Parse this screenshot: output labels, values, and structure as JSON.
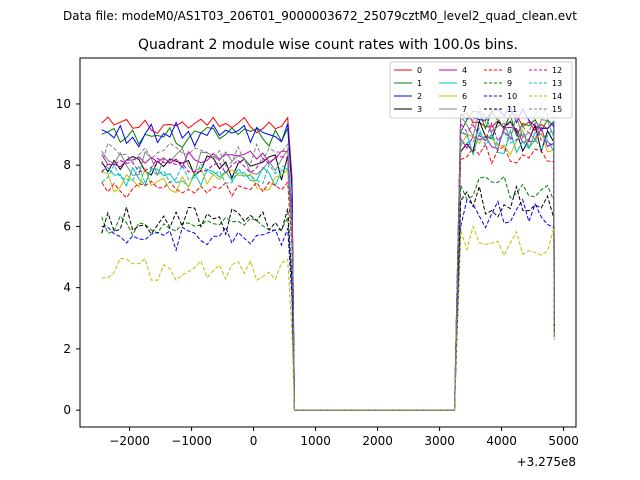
{
  "figure": {
    "suptitle": "Data file: modeM0/AS1T03_206T01_9000003672_25079cztM0_level2_quad_clean.evt",
    "offset_label": "+3.275e8"
  },
  "chart_data": {
    "type": "line",
    "title": "Quadrant 2 module wise count rates with 100.0s bins.",
    "xlabel": "",
    "ylabel": "",
    "xlim": [
      -2800,
      5200
    ],
    "ylim": [
      -0.55,
      11.5
    ],
    "x_offset": 327500000,
    "xticks": [
      -2000,
      -1000,
      0,
      1000,
      2000,
      3000,
      4000,
      5000
    ],
    "xtick_labels": [
      "−2000",
      "−1000",
      "0",
      "1000",
      "2000",
      "3000",
      "4000",
      "5000"
    ],
    "yticks": [
      0,
      2,
      4,
      6,
      8,
      10
    ],
    "ytick_labels": [
      "0",
      "2",
      "4",
      "6",
      "8",
      "10"
    ],
    "grid": false,
    "legend_position": "top-right",
    "segments": [
      {
        "x_start": -2450,
        "x_end": 560,
        "step": 100
      },
      {
        "x_start": 3240,
        "x_end": 4850,
        "step": 100
      }
    ],
    "gap": {
      "x_start": 660,
      "x_end": 3240,
      "value": 0
    },
    "final_points": {
      "x": 4850
    },
    "series": [
      {
        "name": "0",
        "color": "#ff0000",
        "dash": "solid",
        "level1": 9.3,
        "level2": 9.5,
        "end": 3.6
      },
      {
        "name": "1",
        "color": "#008000",
        "dash": "solid",
        "level1": 8.9,
        "level2": 9.4,
        "end": 3.0
      },
      {
        "name": "2",
        "color": "#0000ff",
        "dash": "solid",
        "level1": 9.0,
        "level2": 9.6,
        "end": 3.2
      },
      {
        "name": "3",
        "color": "#000000",
        "dash": "solid",
        "level1": 7.9,
        "level2": 9.0,
        "end": 2.8
      },
      {
        "name": "4",
        "color": "#bf00bf",
        "dash": "solid",
        "level1": 8.2,
        "level2": 8.9,
        "end": 3.0
      },
      {
        "name": "5",
        "color": "#00bfbf",
        "dash": "solid",
        "level1": 7.6,
        "level2": 8.7,
        "end": 2.9
      },
      {
        "name": "6",
        "color": "#bfbf00",
        "dash": "solid",
        "level1": 7.5,
        "level2": 8.8,
        "end": 2.7
      },
      {
        "name": "7",
        "color": "#808080",
        "dash": "solid",
        "level1": 8.1,
        "level2": 9.3,
        "end": 2.9
      },
      {
        "name": "8",
        "color": "#ff0000",
        "dash": "dashed",
        "level1": 7.2,
        "level2": 8.4,
        "end": 2.6
      },
      {
        "name": "9",
        "color": "#008000",
        "dash": "dashed",
        "level1": 6.0,
        "level2": 7.2,
        "end": 2.6
      },
      {
        "name": "10",
        "color": "#0000ff",
        "dash": "dashed",
        "level1": 5.6,
        "level2": 6.4,
        "end": 2.4
      },
      {
        "name": "11",
        "color": "#000000",
        "dash": "dashed",
        "level1": 6.2,
        "level2": 6.8,
        "end": 2.4
      },
      {
        "name": "12",
        "color": "#bf00bf",
        "dash": "dashed",
        "level1": 8.0,
        "level2": 9.0,
        "end": 2.8
      },
      {
        "name": "13",
        "color": "#00bfbf",
        "dash": "dashed",
        "level1": 7.7,
        "level2": 8.8,
        "end": 2.8
      },
      {
        "name": "14",
        "color": "#bfbf00",
        "dash": "dashed",
        "level1": 4.6,
        "level2": 5.5,
        "end": 2.3
      },
      {
        "name": "15",
        "color": "#808080",
        "dash": "dashed",
        "level1": 8.3,
        "level2": 9.4,
        "end": 2.8
      }
    ]
  }
}
